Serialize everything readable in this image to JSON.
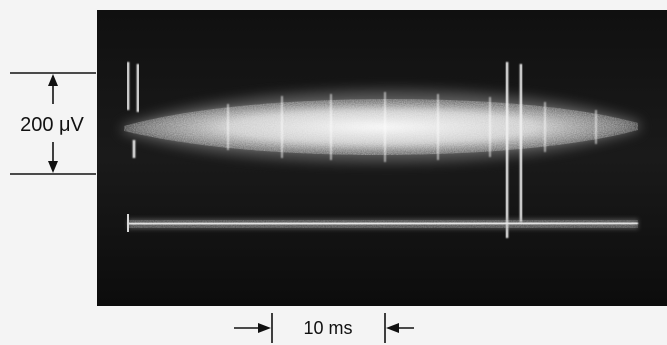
{
  "figure": {
    "vertical_scale_label": "200 μV",
    "time_scale_label": "10 ms"
  }
}
